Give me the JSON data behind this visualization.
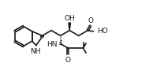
{
  "bg_color": "#ffffff",
  "line_color": "#1a1a1a",
  "lw": 1.2,
  "font_size": 6.5,
  "figsize": [
    1.89,
    0.94
  ],
  "dpi": 100,
  "xlim": [
    0,
    10
  ],
  "ylim": [
    0,
    5
  ]
}
